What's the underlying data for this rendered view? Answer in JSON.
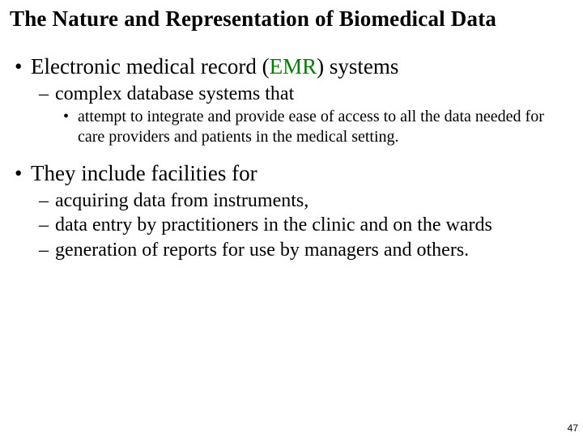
{
  "title": "The Nature and Representation of Biomedical Data",
  "colors": {
    "text": "#000000",
    "accent": "#008000",
    "background": "#ffffff"
  },
  "font_family": "Times New Roman",
  "bullets": {
    "item1": {
      "prefix": "Electronic medical record (",
      "accent": "EMR",
      "suffix": ") systems",
      "sub1": {
        "text": "complex database systems that",
        "sub1": "attempt to integrate and provide ease of access to all the data needed for care providers and patients in the medical setting."
      }
    },
    "item2": {
      "text": "They include facilities for",
      "sub1": "acquiring data from instruments,",
      "sub2": "data entry by practitioners in the clinic and on the wards",
      "sub3": "generation of reports for use by managers and others."
    }
  },
  "page_number": "47"
}
